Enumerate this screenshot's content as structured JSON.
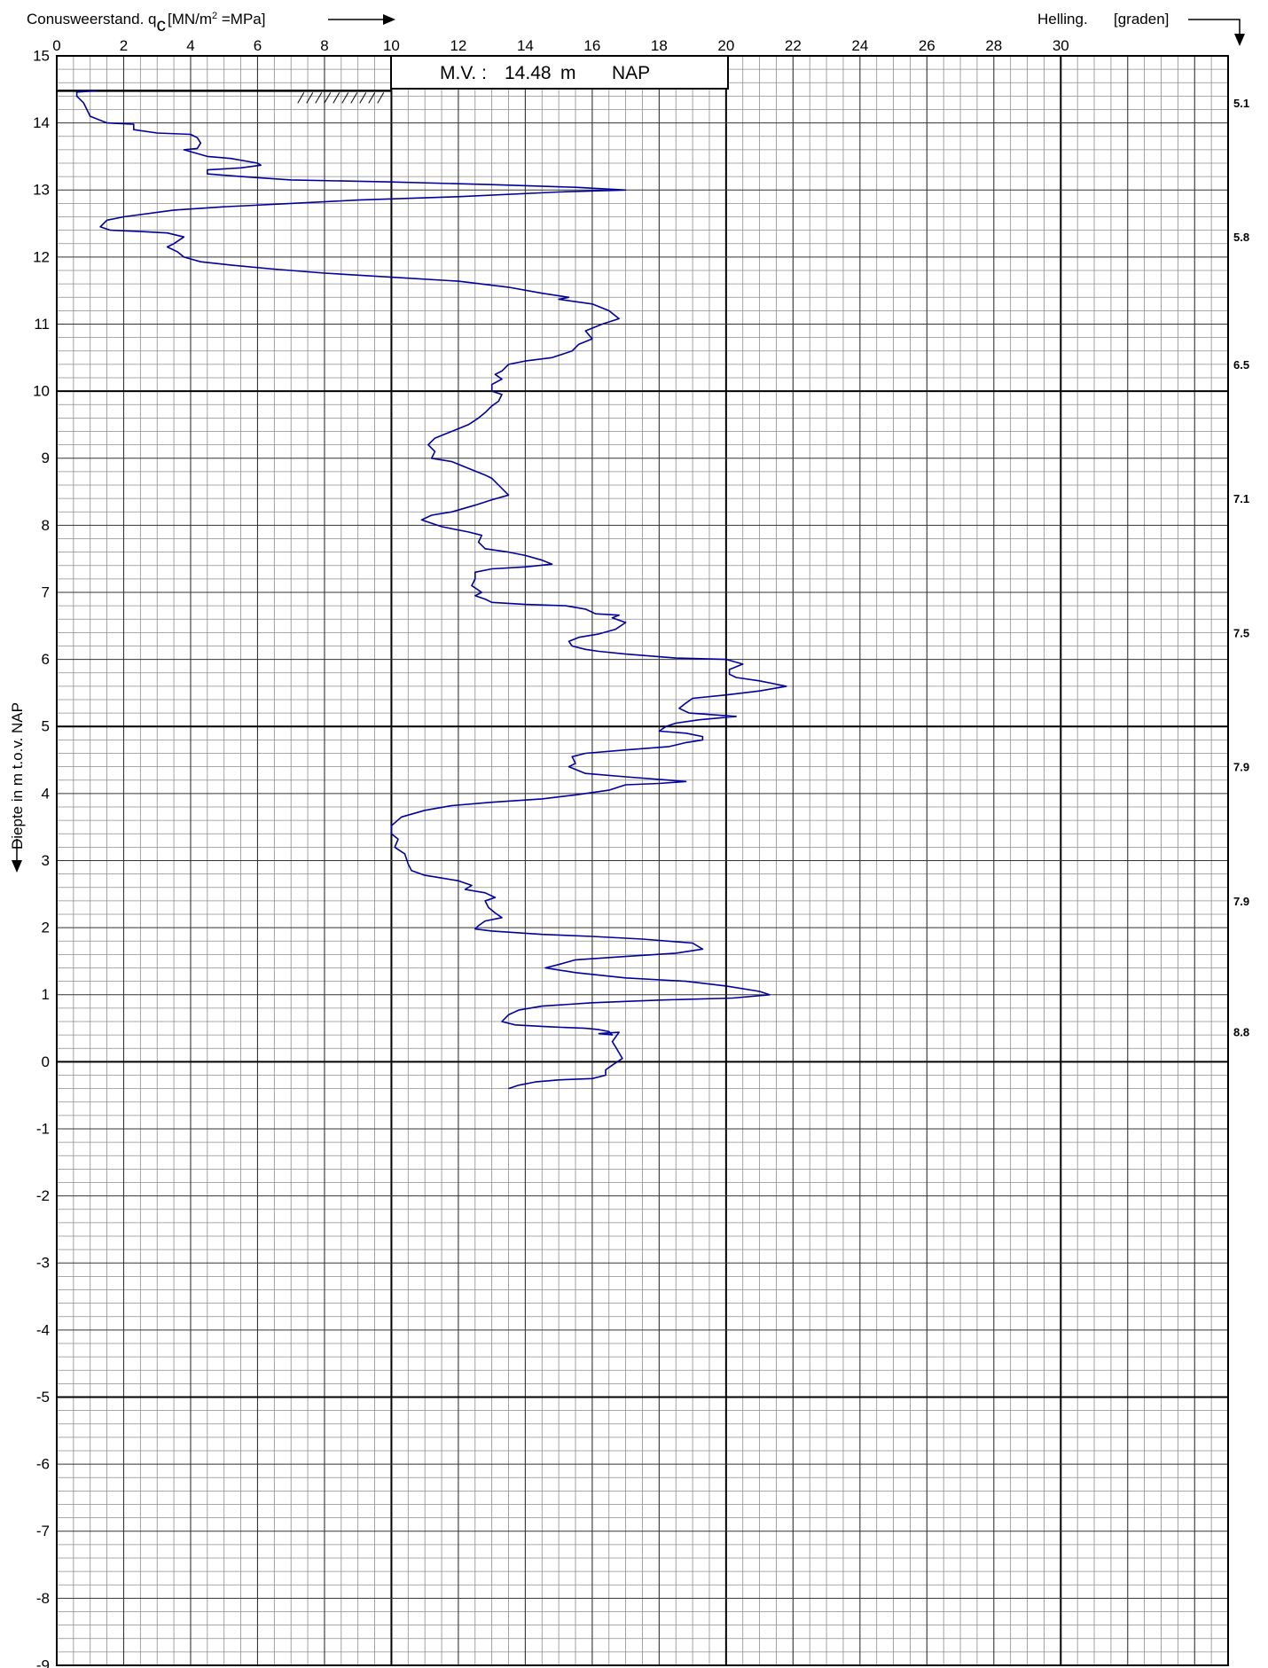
{
  "chart_data": {
    "type": "line",
    "title": "",
    "xlabel_prefix": "Conusweerstand. q",
    "xlabel_subscript": "c",
    "xlabel_unit_prefix": "[MN/m",
    "xlabel_unit_sup": "2",
    "xlabel_unit_suffix": " =MPa]",
    "ylabel": "Diepte in m t.o.v. NAP",
    "secondary_label": "Helling.",
    "secondary_unit": "[graden]",
    "ground_level_label": "M.V. :",
    "ground_level_value": "14.48",
    "ground_level_unit": "m",
    "ground_level_ref": "NAP",
    "xlim": [
      0,
      35
    ],
    "ylim": [
      -9,
      15
    ],
    "x_tick_labels": [
      "0",
      "2",
      "4",
      "6",
      "8",
      "10",
      "12",
      "14",
      "16",
      "18",
      "20",
      "22",
      "24",
      "26",
      "28",
      "30"
    ],
    "y_tick_labels": [
      "15",
      "14",
      "13",
      "12",
      "11",
      "10",
      "9",
      "8",
      "7",
      "6",
      "5",
      "4",
      "3",
      "2",
      "1",
      "0",
      "-1",
      "-2",
      "-3",
      "-4",
      "-5",
      "-6",
      "-7",
      "-8",
      "-9"
    ],
    "inclination": [
      {
        "depth": 14.3,
        "label": "5.1"
      },
      {
        "depth": 12.3,
        "label": "5.8"
      },
      {
        "depth": 10.4,
        "label": "6.5"
      },
      {
        "depth": 8.4,
        "label": "7.1"
      },
      {
        "depth": 6.4,
        "label": "7.5"
      },
      {
        "depth": 4.4,
        "label": "7.9"
      },
      {
        "depth": 2.4,
        "label": "7.9"
      },
      {
        "depth": 0.45,
        "label": "8.8"
      }
    ],
    "series": [
      {
        "color": "#00009a",
        "points": [
          [
            1.2,
            14.48
          ],
          [
            0.6,
            14.46
          ],
          [
            0.6,
            14.4
          ],
          [
            0.8,
            14.3
          ],
          [
            1.0,
            14.1
          ],
          [
            1.5,
            14.0
          ],
          [
            2.3,
            13.98
          ],
          [
            2.3,
            13.9
          ],
          [
            3.0,
            13.85
          ],
          [
            4.0,
            13.83
          ],
          [
            4.2,
            13.78
          ],
          [
            4.3,
            13.7
          ],
          [
            4.2,
            13.62
          ],
          [
            3.8,
            13.6
          ],
          [
            4.5,
            13.5
          ],
          [
            5.2,
            13.47
          ],
          [
            6.0,
            13.4
          ],
          [
            6.1,
            13.37
          ],
          [
            5.5,
            13.33
          ],
          [
            4.5,
            13.3
          ],
          [
            4.5,
            13.24
          ],
          [
            5.5,
            13.2
          ],
          [
            7.0,
            13.15
          ],
          [
            10.0,
            13.12
          ],
          [
            13.0,
            13.08
          ],
          [
            15.5,
            13.04
          ],
          [
            17.0,
            13.0
          ],
          [
            15.0,
            12.97
          ],
          [
            12.0,
            12.9
          ],
          [
            9.0,
            12.85
          ],
          [
            7.0,
            12.8
          ],
          [
            5.0,
            12.75
          ],
          [
            3.5,
            12.7
          ],
          [
            2.0,
            12.6
          ],
          [
            1.5,
            12.55
          ],
          [
            1.3,
            12.45
          ],
          [
            1.6,
            12.4
          ],
          [
            2.5,
            12.38
          ],
          [
            3.3,
            12.36
          ],
          [
            3.8,
            12.3
          ],
          [
            3.5,
            12.2
          ],
          [
            3.3,
            12.15
          ],
          [
            3.6,
            12.08
          ],
          [
            3.8,
            12.0
          ],
          [
            4.3,
            11.93
          ],
          [
            5.2,
            11.88
          ],
          [
            6.5,
            11.82
          ],
          [
            8.0,
            11.76
          ],
          [
            10.0,
            11.7
          ],
          [
            12.0,
            11.64
          ],
          [
            13.5,
            11.55
          ],
          [
            14.5,
            11.46
          ],
          [
            15.3,
            11.4
          ],
          [
            15.0,
            11.37
          ],
          [
            16.0,
            11.3
          ],
          [
            16.5,
            11.2
          ],
          [
            16.8,
            11.08
          ],
          [
            16.3,
            11.0
          ],
          [
            15.8,
            10.9
          ],
          [
            16.0,
            10.78
          ],
          [
            15.6,
            10.7
          ],
          [
            15.4,
            10.6
          ],
          [
            14.8,
            10.5
          ],
          [
            14.0,
            10.45
          ],
          [
            13.5,
            10.4
          ],
          [
            13.3,
            10.3
          ],
          [
            13.1,
            10.25
          ],
          [
            13.3,
            10.18
          ],
          [
            13.0,
            10.1
          ],
          [
            13.0,
            10.0
          ],
          [
            13.3,
            9.95
          ],
          [
            13.2,
            9.85
          ],
          [
            13.0,
            9.78
          ],
          [
            12.8,
            9.68
          ],
          [
            12.6,
            9.6
          ],
          [
            12.3,
            9.5
          ],
          [
            11.8,
            9.4
          ],
          [
            11.3,
            9.3
          ],
          [
            11.1,
            9.2
          ],
          [
            11.3,
            9.1
          ],
          [
            11.2,
            9.0
          ],
          [
            11.8,
            8.95
          ],
          [
            12.3,
            8.85
          ],
          [
            12.8,
            8.75
          ],
          [
            13.0,
            8.7
          ],
          [
            13.2,
            8.6
          ],
          [
            13.5,
            8.45
          ],
          [
            13.0,
            8.38
          ],
          [
            12.5,
            8.3
          ],
          [
            11.8,
            8.2
          ],
          [
            11.2,
            8.15
          ],
          [
            10.9,
            8.08
          ],
          [
            11.5,
            7.98
          ],
          [
            12.3,
            7.9
          ],
          [
            12.7,
            7.85
          ],
          [
            12.6,
            7.75
          ],
          [
            12.8,
            7.65
          ],
          [
            13.5,
            7.6
          ],
          [
            14.0,
            7.55
          ],
          [
            14.5,
            7.48
          ],
          [
            14.8,
            7.42
          ],
          [
            14.0,
            7.38
          ],
          [
            13.0,
            7.35
          ],
          [
            12.5,
            7.3
          ],
          [
            12.5,
            7.2
          ],
          [
            12.4,
            7.1
          ],
          [
            12.7,
            7.0
          ],
          [
            12.5,
            6.95
          ],
          [
            12.8,
            6.9
          ],
          [
            13.0,
            6.85
          ],
          [
            14.0,
            6.82
          ],
          [
            15.2,
            6.8
          ],
          [
            15.8,
            6.75
          ],
          [
            16.1,
            6.68
          ],
          [
            16.8,
            6.66
          ],
          [
            16.6,
            6.62
          ],
          [
            17.0,
            6.55
          ],
          [
            16.7,
            6.45
          ],
          [
            16.2,
            6.38
          ],
          [
            15.6,
            6.33
          ],
          [
            15.3,
            6.27
          ],
          [
            15.4,
            6.2
          ],
          [
            15.8,
            6.15
          ],
          [
            16.2,
            6.12
          ],
          [
            17.0,
            6.08
          ],
          [
            18.5,
            6.02
          ],
          [
            20.0,
            6.0
          ],
          [
            20.5,
            5.93
          ],
          [
            20.1,
            5.85
          ],
          [
            20.1,
            5.78
          ],
          [
            20.3,
            5.73
          ],
          [
            21.0,
            5.68
          ],
          [
            21.8,
            5.6
          ],
          [
            21.0,
            5.53
          ],
          [
            20.0,
            5.47
          ],
          [
            19.0,
            5.42
          ],
          [
            18.8,
            5.35
          ],
          [
            18.6,
            5.27
          ],
          [
            18.9,
            5.2
          ],
          [
            20.3,
            5.15
          ],
          [
            19.2,
            5.1
          ],
          [
            18.5,
            5.05
          ],
          [
            18.2,
            5.0
          ],
          [
            18.0,
            4.93
          ],
          [
            18.8,
            4.9
          ],
          [
            19.3,
            4.85
          ],
          [
            19.3,
            4.8
          ],
          [
            18.8,
            4.76
          ],
          [
            18.3,
            4.7
          ],
          [
            17.0,
            4.65
          ],
          [
            15.8,
            4.6
          ],
          [
            15.4,
            4.55
          ],
          [
            15.5,
            4.45
          ],
          [
            15.3,
            4.4
          ],
          [
            15.8,
            4.3
          ],
          [
            17.0,
            4.25
          ],
          [
            18.8,
            4.18
          ],
          [
            18.0,
            4.15
          ],
          [
            17.0,
            4.13
          ],
          [
            16.5,
            4.05
          ],
          [
            15.5,
            3.98
          ],
          [
            14.5,
            3.92
          ],
          [
            13.0,
            3.87
          ],
          [
            11.8,
            3.82
          ],
          [
            11.0,
            3.75
          ],
          [
            10.3,
            3.65
          ],
          [
            10.0,
            3.52
          ],
          [
            10.0,
            3.4
          ],
          [
            10.2,
            3.32
          ],
          [
            10.1,
            3.2
          ],
          [
            10.4,
            3.1
          ],
          [
            10.5,
            2.95
          ],
          [
            10.6,
            2.85
          ],
          [
            11.0,
            2.78
          ],
          [
            12.0,
            2.7
          ],
          [
            12.4,
            2.63
          ],
          [
            12.2,
            2.57
          ],
          [
            12.8,
            2.52
          ],
          [
            13.1,
            2.45
          ],
          [
            12.8,
            2.4
          ],
          [
            12.9,
            2.3
          ],
          [
            13.1,
            2.22
          ],
          [
            13.3,
            2.15
          ],
          [
            12.8,
            2.1
          ],
          [
            12.6,
            2.03
          ],
          [
            12.5,
            1.98
          ],
          [
            13.0,
            1.95
          ],
          [
            14.5,
            1.9
          ],
          [
            16.0,
            1.87
          ],
          [
            17.5,
            1.83
          ],
          [
            19.0,
            1.77
          ],
          [
            19.3,
            1.68
          ],
          [
            18.5,
            1.62
          ],
          [
            17.0,
            1.57
          ],
          [
            15.5,
            1.52
          ],
          [
            15.0,
            1.45
          ],
          [
            14.6,
            1.4
          ],
          [
            15.5,
            1.33
          ],
          [
            17.0,
            1.25
          ],
          [
            18.8,
            1.2
          ],
          [
            20.0,
            1.13
          ],
          [
            21.0,
            1.05
          ],
          [
            21.3,
            1.0
          ],
          [
            20.2,
            0.95
          ],
          [
            18.0,
            0.92
          ],
          [
            16.0,
            0.88
          ],
          [
            14.5,
            0.83
          ],
          [
            13.8,
            0.77
          ],
          [
            13.5,
            0.7
          ],
          [
            13.3,
            0.6
          ],
          [
            13.7,
            0.55
          ],
          [
            14.8,
            0.52
          ],
          [
            15.8,
            0.5
          ],
          [
            16.2,
            0.48
          ],
          [
            16.5,
            0.45
          ],
          [
            16.6,
            0.4
          ],
          [
            16.2,
            0.42
          ],
          [
            16.8,
            0.44
          ],
          [
            16.6,
            0.3
          ],
          [
            16.7,
            0.22
          ],
          [
            16.9,
            0.05
          ],
          [
            16.6,
            -0.05
          ],
          [
            16.4,
            -0.12
          ],
          [
            16.4,
            -0.2
          ],
          [
            16.0,
            -0.25
          ],
          [
            15.0,
            -0.27
          ],
          [
            14.3,
            -0.3
          ],
          [
            13.8,
            -0.35
          ],
          [
            13.5,
            -0.4
          ]
        ]
      }
    ]
  }
}
